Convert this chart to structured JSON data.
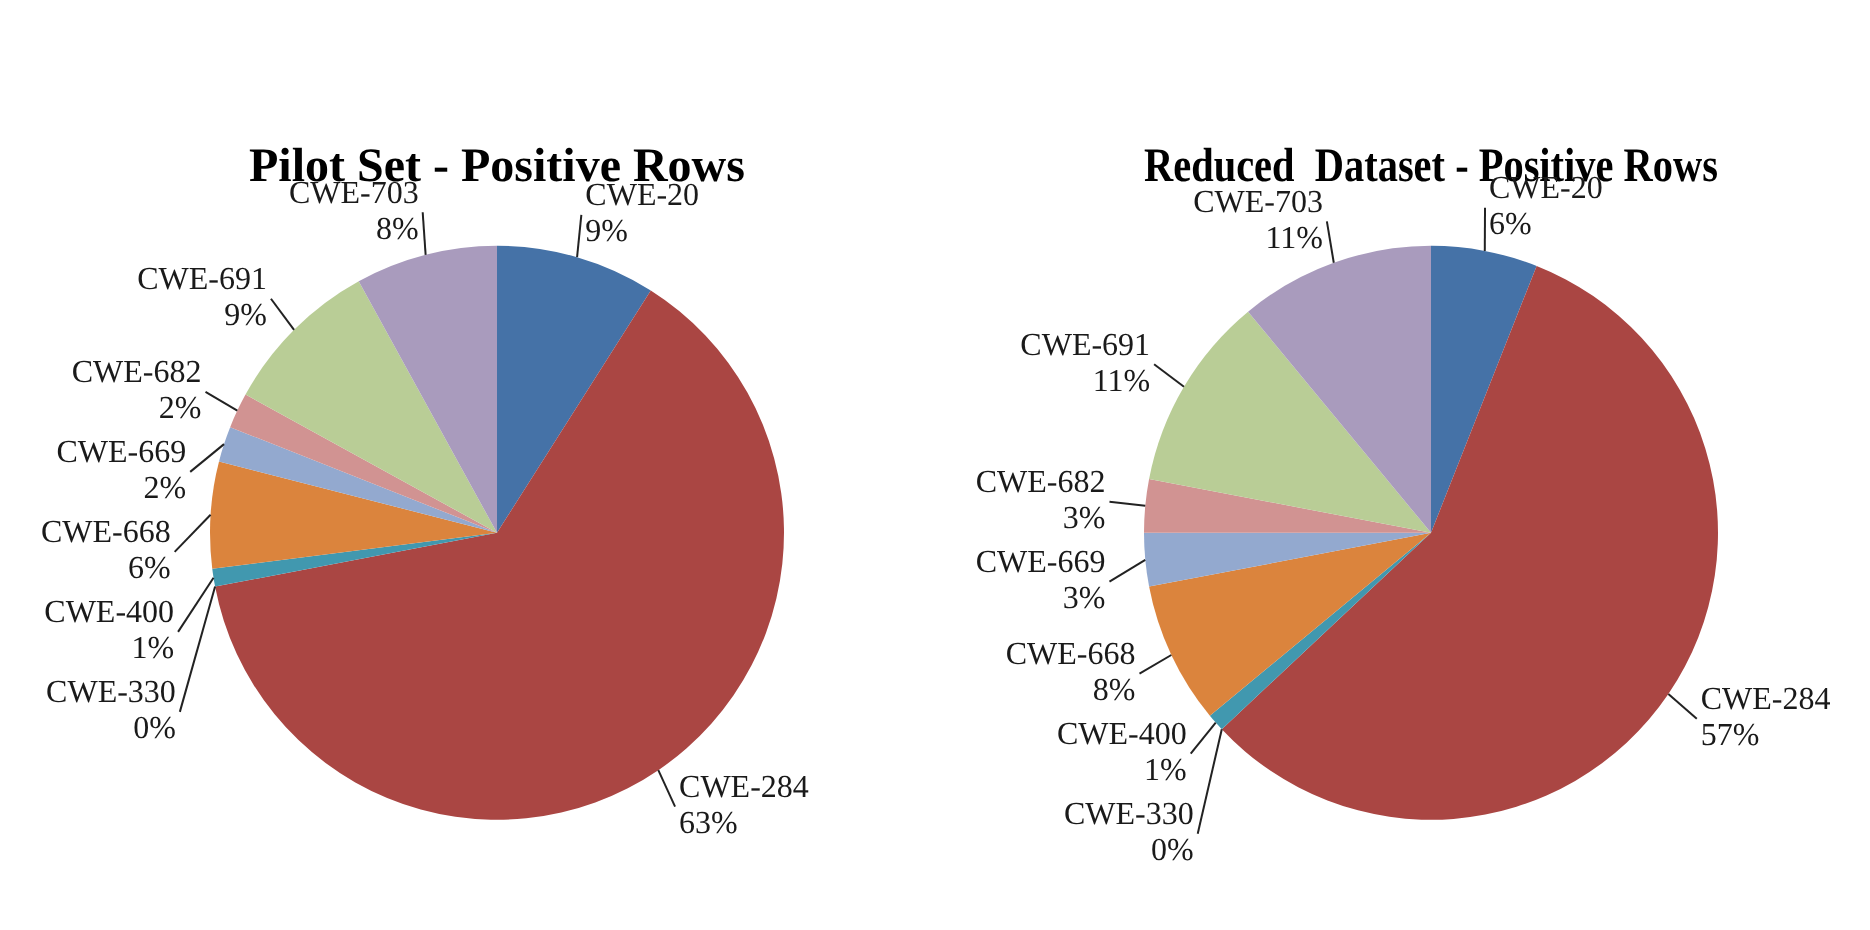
{
  "chart_data": [
    {
      "type": "pie",
      "title": "Pilot Set - Positive Rows",
      "categories": [
        "CWE-20",
        "CWE-284",
        "CWE-330",
        "CWE-400",
        "CWE-668",
        "CWE-669",
        "CWE-682",
        "CWE-691",
        "CWE-703"
      ],
      "values": [
        9,
        63,
        0,
        1,
        6,
        2,
        2,
        9,
        8
      ],
      "value_labels": [
        "9%",
        "63%",
        "0%",
        "1%",
        "6%",
        "2%",
        "2%",
        "9%",
        "8%"
      ],
      "colors": [
        "#4572a7",
        "#aa4643",
        "#89a54e",
        "#4198af",
        "#db843d",
        "#93a9cf",
        "#d19392",
        "#b9cd96",
        "#a99bbd"
      ],
      "legend": false
    },
    {
      "type": "pie",
      "title": "Reduced  Dataset - Positive Rows",
      "categories": [
        "CWE-20",
        "CWE-284",
        "CWE-330",
        "CWE-400",
        "CWE-668",
        "CWE-669",
        "CWE-682",
        "CWE-691",
        "CWE-703"
      ],
      "values": [
        6,
        57,
        0,
        1,
        8,
        3,
        3,
        11,
        11
      ],
      "value_labels": [
        "6%",
        "57%",
        "0%",
        "1%",
        "8%",
        "3%",
        "3%",
        "11%",
        "11%"
      ],
      "colors": [
        "#4572a7",
        "#aa4643",
        "#89a54e",
        "#4198af",
        "#db843d",
        "#93a9cf",
        "#d19392",
        "#b9cd96",
        "#a99bbd"
      ],
      "legend": false
    }
  ]
}
